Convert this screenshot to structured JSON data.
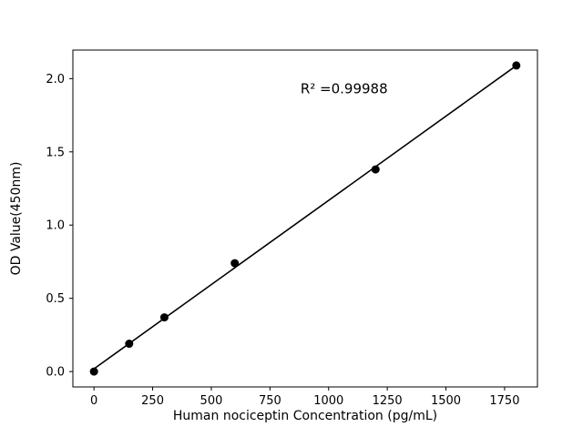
{
  "figure": {
    "background": "#ffffff"
  },
  "chart_data": {
    "type": "scatter",
    "title": "",
    "xlabel": "Human nociceptin Concentration (pg/mL)",
    "ylabel": "OD Value(450nm)",
    "annotation": {
      "text": "R² =0.99988",
      "x": 880,
      "y": 1.9
    },
    "x": [
      0,
      150,
      300,
      600,
      1200,
      1800
    ],
    "y": [
      0.0,
      0.19,
      0.37,
      0.74,
      1.38,
      2.09
    ],
    "fit_line": true,
    "xlim": [
      -90,
      1890
    ],
    "ylim": [
      -0.105,
      2.195
    ],
    "xticks": {
      "values": [
        0,
        250,
        500,
        750,
        1000,
        1250,
        1500,
        1750
      ],
      "labels": [
        "0",
        "250",
        "500",
        "750",
        "1000",
        "1250",
        "1500",
        "1750"
      ]
    },
    "yticks": {
      "values": [
        0.0,
        0.5,
        1.0,
        1.5,
        2.0
      ],
      "labels": [
        "0.0",
        "0.5",
        "1.0",
        "1.5",
        "2.0"
      ]
    },
    "marker_color": "#000000",
    "line_color": "#000000",
    "axes_color": "#000000",
    "grid": false,
    "legend": null
  }
}
